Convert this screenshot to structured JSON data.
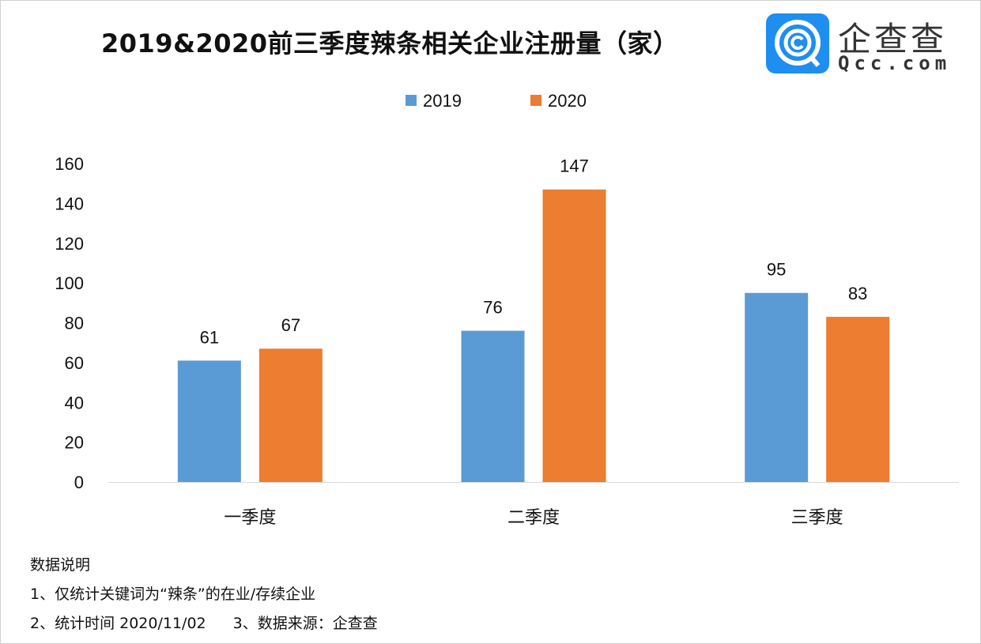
{
  "brand": {
    "name_cn": "企查查",
    "name_en": "Qcc.com",
    "color": "#1e8ef0"
  },
  "chart_data": {
    "type": "bar",
    "title": "2019&2020前三季度辣条相关企业注册量（家）",
    "categories": [
      "一季度",
      "二季度",
      "三季度"
    ],
    "series": [
      {
        "name": "2019",
        "values": [
          61,
          76,
          95
        ],
        "color": "#5b9bd5"
      },
      {
        "name": "2020",
        "values": [
          67,
          147,
          83
        ],
        "color": "#ed7d31"
      }
    ],
    "ylim": [
      0,
      160
    ],
    "yticks": [
      0,
      20,
      40,
      60,
      80,
      100,
      120,
      140,
      160
    ],
    "grid": false,
    "legend": "top-center",
    "data_labels": true
  },
  "notes": {
    "heading": "数据说明",
    "line1": "1、仅统计关键词为“辣条”的在业/存续企业",
    "line2a": "2、统计时间 2020/11/02",
    "line2b": "3、数据来源：企查查"
  }
}
